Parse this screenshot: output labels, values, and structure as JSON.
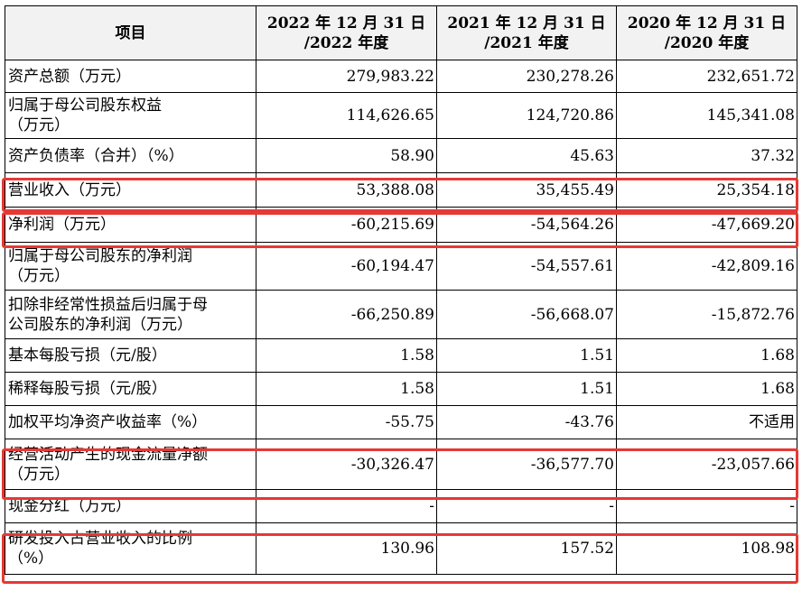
{
  "headers": {
    "item": "项目",
    "col1": "2022 年 12 月 31 日\n/2022 年度",
    "col2": "2021 年 12 月 31 日\n/2021 年度",
    "col3": "2020 年 12 月 31 日\n/2020 年度"
  },
  "rows": [
    {
      "label": "资产总额（万元）",
      "v1": "279,983.22",
      "v2": "230,278.26",
      "v3": "232,651.72"
    },
    {
      "label": "归属于母公司股东权益\n（万元）",
      "v1": "114,626.65",
      "v2": "124,720.86",
      "v3": "145,341.08"
    },
    {
      "label": "资产负债率（合并）（%）",
      "v1": "58.90",
      "v2": "45.63",
      "v3": "37.32"
    },
    {
      "label": "营业收入（万元）",
      "v1": "53,388.08",
      "v2": "35,455.49",
      "v3": "25,354.18"
    },
    {
      "label": "净利润（万元）",
      "v1": "-60,215.69",
      "v2": "-54,564.26",
      "v3": "-47,669.20"
    },
    {
      "label": "归属于母公司股东的净利润\n（万元）",
      "v1": "-60,194.47",
      "v2": "-54,557.61",
      "v3": "-42,809.16"
    },
    {
      "label": "扣除非经常性损益后归属于母\n公司股东的净利润（万元）",
      "v1": "-66,250.89",
      "v2": "-56,668.07",
      "v3": "-15,872.76"
    },
    {
      "label": "基本每股亏损（元/股）",
      "v1": "1.58",
      "v2": "1.51",
      "v3": "1.68"
    },
    {
      "label": "稀释每股亏损（元/股）",
      "v1": "1.58",
      "v2": "1.51",
      "v3": "1.68"
    },
    {
      "label": "加权平均净资产收益率（%）",
      "v1": "-55.75",
      "v2": "-43.76",
      "v3": "不适用"
    },
    {
      "label": "经营活动产生的现金流量净额\n（万元）",
      "v1": "-30,326.47",
      "v2": "-36,577.70",
      "v3": "-23,057.66"
    },
    {
      "label": "现金分红（万元）",
      "v1": "-",
      "v2": "-",
      "v3": "-"
    },
    {
      "label": "研发投入占营业收入的比例\n（%）",
      "v1": "130.96",
      "v2": "157.52",
      "v3": "108.98"
    }
  ],
  "highlight_color": "#e53935"
}
